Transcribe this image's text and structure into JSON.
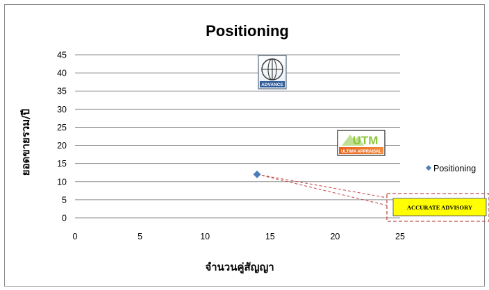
{
  "chart_data": {
    "type": "scatter",
    "title": "Positioning",
    "xlabel": "จำนวนคู่สัญญา",
    "ylabel": "ยอดขายรวม/ปี",
    "xlim": [
      0,
      25
    ],
    "ylim": [
      0,
      45
    ],
    "x_ticks": [
      "0",
      "5",
      "10",
      "15",
      "20",
      "25"
    ],
    "y_ticks": [
      "0",
      "5",
      "10",
      "15",
      "20",
      "25",
      "30",
      "35",
      "40",
      "45"
    ],
    "grid": "horizontal",
    "legend_position": "right",
    "series": [
      {
        "name": "Positioning",
        "color": "#4a7ebb",
        "points": [
          {
            "x": 14,
            "y": 12
          }
        ]
      }
    ],
    "annotations": [
      {
        "label": "ADVANCE",
        "x": 14.5,
        "y": 40.5,
        "icon": "advance-logo"
      },
      {
        "label": "UTM",
        "sublabel": "ULTIMA APPRAISAL",
        "x": 22,
        "y": 20.5,
        "icon": "utm-logo"
      },
      {
        "label": "ACCURATE ADVISORY",
        "callout_for": "Positioning",
        "color": "#ffff00"
      }
    ]
  }
}
